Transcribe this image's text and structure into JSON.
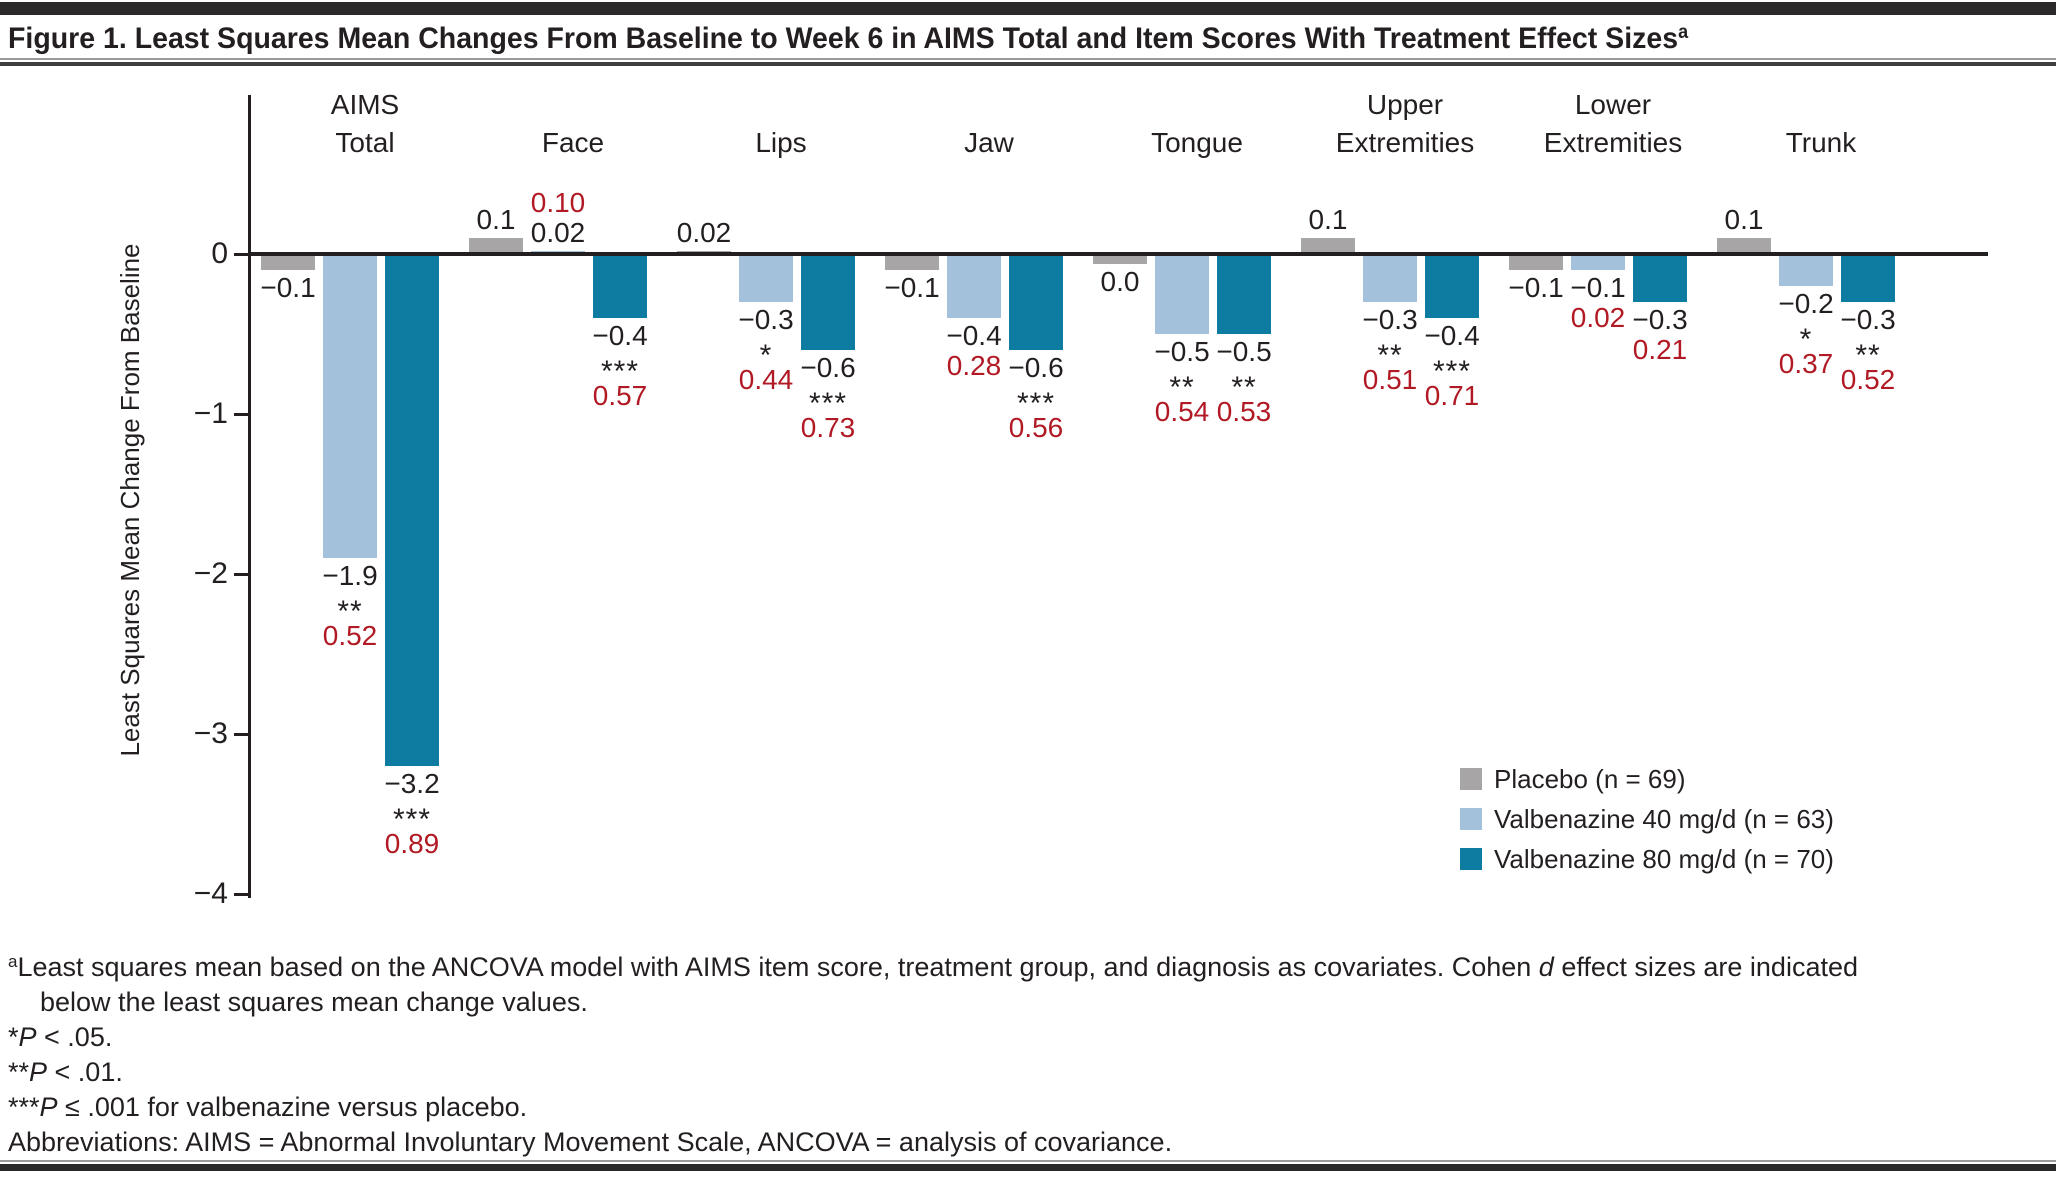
{
  "title": {
    "text": "Figure 1. Least Squares Mean Changes From Baseline to Week 6 in AIMS Total and Item Scores With Treatment Effect Sizes",
    "superscript": "a"
  },
  "colors": {
    "placebo": "#a7a5a6",
    "valbenazine_40": "#a3c1da",
    "valbenazine_80": "#0e7ba1",
    "effect_size_text": "#b11a25",
    "text": "#231f20"
  },
  "y_axis": {
    "label": "Least Squares Mean Change From Baseline",
    "tick_values": [
      0,
      -1,
      -2,
      -3,
      -4
    ],
    "tick_labels": [
      "0",
      "−1",
      "−2",
      "−3",
      "−4"
    ],
    "min": -4,
    "max": 1
  },
  "legend": {
    "items": [
      {
        "label": "Placebo (n = 69)",
        "color": "placebo"
      },
      {
        "label": "Valbenazine 40 mg/d (n = 63)",
        "color": "valbenazine_40"
      },
      {
        "label": "Valbenazine 80 mg/d (n = 70)",
        "color": "valbenazine_80"
      }
    ]
  },
  "chart_data": {
    "type": "bar",
    "title": "Least Squares Mean Changes From Baseline to Week 6 in AIMS Total and Item Scores With Treatment Effect Sizes",
    "ylabel": "Least Squares Mean Change From Baseline",
    "ylim": [
      -4,
      1
    ],
    "grid": false,
    "legend_position": "lower right",
    "categories": [
      [
        "AIMS",
        "Total"
      ],
      [
        "Face"
      ],
      [
        "Lips"
      ],
      [
        "Jaw"
      ],
      [
        "Tongue"
      ],
      [
        "Upper",
        "Extremities"
      ],
      [
        "Lower",
        "Extremities"
      ],
      [
        "Trunk"
      ]
    ],
    "series": [
      {
        "name": "Placebo (n = 69)",
        "color": "placebo",
        "values": [
          -0.1,
          0.1,
          0.02,
          -0.1,
          0.0,
          0.1,
          -0.1,
          0.1
        ],
        "value_labels": [
          "−0.1",
          "0.1",
          "0.02",
          "−0.1",
          "0.0",
          "0.1",
          "−0.1",
          "0.1"
        ],
        "significance": [
          "",
          "",
          "",
          "",
          "",
          "",
          "",
          ""
        ],
        "effect_sizes": [
          "",
          "",
          "",
          "",
          "",
          "",
          "",
          ""
        ]
      },
      {
        "name": "Valbenazine 40 mg/d (n = 63)",
        "color": "valbenazine_40",
        "values": [
          -1.9,
          0.02,
          -0.3,
          -0.4,
          -0.5,
          -0.3,
          -0.1,
          -0.2
        ],
        "value_labels": [
          "−1.9",
          "0.02",
          "−0.3",
          "−0.4",
          "−0.5",
          "−0.3",
          "−0.1",
          "−0.2"
        ],
        "significance": [
          "**",
          "",
          "*",
          "",
          "**",
          "**",
          "",
          "*"
        ],
        "effect_sizes": [
          "0.52",
          "0.10",
          "0.44",
          "0.28",
          "0.54",
          "0.51",
          "0.02",
          "0.37"
        ]
      },
      {
        "name": "Valbenazine 80 mg/d (n = 70)",
        "color": "valbenazine_80",
        "values": [
          -3.2,
          -0.4,
          -0.6,
          -0.6,
          -0.5,
          -0.4,
          -0.3,
          -0.3
        ],
        "value_labels": [
          "−3.2",
          "−0.4",
          "−0.6",
          "−0.6",
          "−0.5",
          "−0.4",
          "−0.3",
          "−0.3"
        ],
        "significance": [
          "***",
          "***",
          "***",
          "***",
          "**",
          "***",
          "",
          "**"
        ],
        "effect_sizes": [
          "0.89",
          "0.57",
          "0.73",
          "0.56",
          "0.53",
          "0.71",
          "0.21",
          "0.52"
        ]
      }
    ]
  },
  "footnotes": [
    {
      "indent": false,
      "segments": [
        {
          "t": "a",
          "sup": true
        },
        {
          "t": "Least squares mean based on the ANCOVA model with AIMS item score, treatment group, and diagnosis as covariates. Cohen "
        },
        {
          "t": "d",
          "i": true
        },
        {
          "t": " effect sizes are indicated"
        }
      ]
    },
    {
      "indent": true,
      "segments": [
        {
          "t": "below the least squares mean change values."
        }
      ]
    },
    {
      "indent": false,
      "segments": [
        {
          "t": "*"
        },
        {
          "t": "P",
          "i": true
        },
        {
          "t": " < .05."
        }
      ]
    },
    {
      "indent": false,
      "segments": [
        {
          "t": "**"
        },
        {
          "t": "P",
          "i": true
        },
        {
          "t": " < .01."
        }
      ]
    },
    {
      "indent": false,
      "segments": [
        {
          "t": "***"
        },
        {
          "t": "P",
          "i": true
        },
        {
          "t": " ≤ .001 for valbenazine versus placebo."
        }
      ]
    },
    {
      "indent": false,
      "segments": [
        {
          "t": "Abbreviations: AIMS = Abnormal Involuntary Movement Scale, ANCOVA = analysis of covariance."
        }
      ]
    }
  ]
}
